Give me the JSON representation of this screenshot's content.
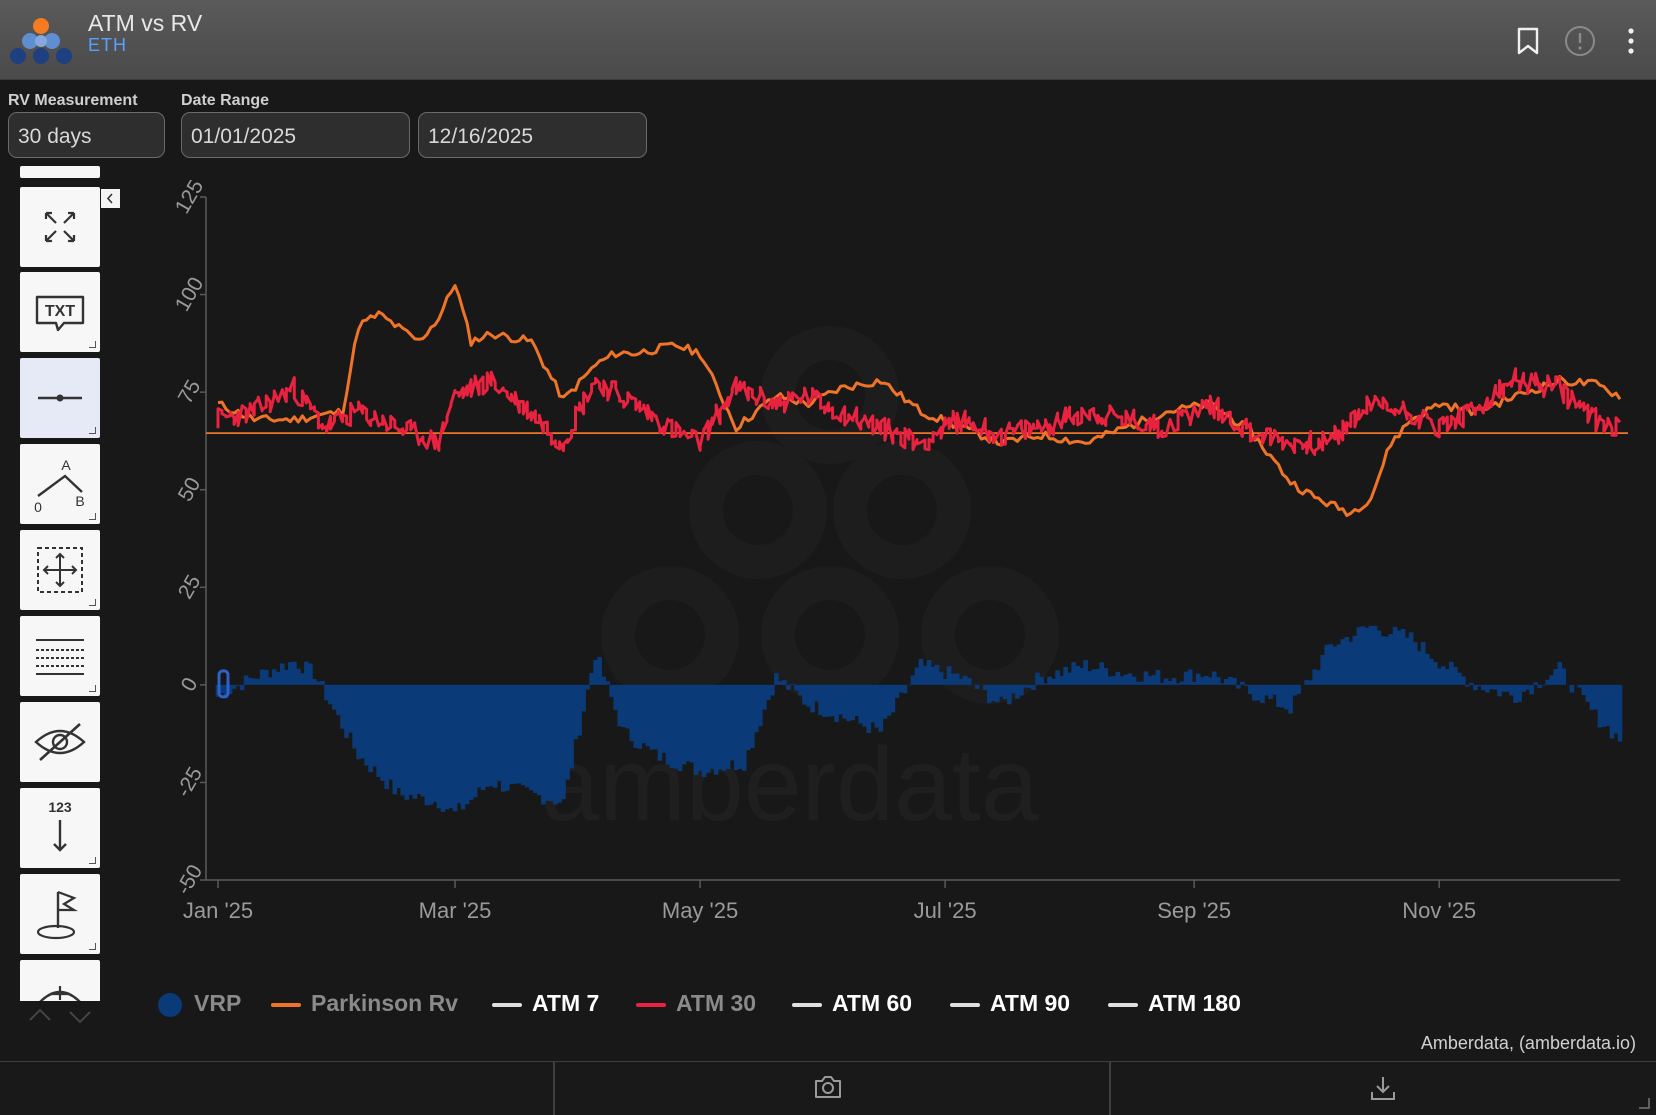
{
  "header": {
    "title": "ATM vs RV",
    "subtitle": "ETH",
    "icons": [
      "bookmark-icon",
      "info-icon",
      "more-vertical-icon"
    ]
  },
  "controls": {
    "rv_measurement_label": "RV Measurement",
    "rv_measurement_value": "30 days",
    "date_range_label": "Date Range",
    "date_start": "01/01/2025",
    "date_end": "12/16/2025"
  },
  "toolbar": {
    "tools": [
      "fullscreen-tool",
      "text-annotation-tool",
      "line-tool",
      "angle-tool",
      "crosshair-select-tool",
      "grid-lines-tool",
      "hide-tool",
      "numbering-tool",
      "flag-marker-tool",
      "measure-tool"
    ],
    "txt_glyph": "TXT",
    "angle_labels": [
      "A",
      "0",
      "B"
    ],
    "numbering_glyph": "123"
  },
  "colors": {
    "vrp": "#0b3a78",
    "parkinson": "#f07428",
    "atm30": "#e8223f",
    "inactive": "#e0e0e0",
    "background": "#181818"
  },
  "chart_data": {
    "type": "line",
    "y_ticks": [
      "125",
      "100",
      "75",
      "50",
      "25",
      "0",
      "-25",
      "-50"
    ],
    "ylim": [
      -50,
      125
    ],
    "x_ticks": [
      "Jan '25",
      "Mar '25",
      "May '25",
      "Jul '25",
      "Sep '25",
      "Nov '25"
    ],
    "xlim": [
      "2025-01-01",
      "2025-12-16"
    ],
    "reference_line": 64.5,
    "grid": false,
    "legend_position": "bottom",
    "series": [
      {
        "name": "VRP",
        "type": "area",
        "x": [
          "2025-01-01",
          "2025-01-10",
          "2025-01-20",
          "2025-01-25",
          "2025-02-05",
          "2025-02-15",
          "2025-02-25",
          "2025-03-01",
          "2025-03-10",
          "2025-03-20",
          "2025-03-28",
          "2025-04-05",
          "2025-04-12",
          "2025-04-20",
          "2025-05-01",
          "2025-05-12",
          "2025-05-20",
          "2025-05-28",
          "2025-06-05",
          "2025-06-15",
          "2025-06-25",
          "2025-07-05",
          "2025-07-15",
          "2025-07-25",
          "2025-08-05",
          "2025-08-15",
          "2025-08-25",
          "2025-09-05",
          "2025-09-15",
          "2025-09-25",
          "2025-10-05",
          "2025-10-15",
          "2025-10-25",
          "2025-11-01",
          "2025-11-10",
          "2025-11-20",
          "2025-12-01",
          "2025-12-10",
          "2025-12-16"
        ],
        "values": [
          -3,
          2,
          6,
          3,
          -18,
          -28,
          -30,
          -33,
          -25,
          -28,
          -30,
          8,
          -12,
          -18,
          -22,
          -20,
          2,
          -5,
          -8,
          -12,
          5,
          2,
          -5,
          2,
          5,
          3,
          2,
          3,
          -2,
          -6,
          10,
          15,
          12,
          6,
          0,
          -3,
          4,
          -8,
          -14
        ]
      },
      {
        "name": "Parkinson Rv",
        "type": "line",
        "x": [
          "2025-01-01",
          "2025-01-10",
          "2025-01-20",
          "2025-02-01",
          "2025-02-05",
          "2025-02-10",
          "2025-02-20",
          "2025-02-25",
          "2025-03-01",
          "2025-03-05",
          "2025-03-10",
          "2025-03-20",
          "2025-03-28",
          "2025-04-05",
          "2025-04-10",
          "2025-04-15",
          "2025-04-25",
          "2025-05-01",
          "2025-05-10",
          "2025-05-20",
          "2025-05-28",
          "2025-06-05",
          "2025-06-15",
          "2025-06-25",
          "2025-07-05",
          "2025-07-15",
          "2025-07-25",
          "2025-08-05",
          "2025-08-15",
          "2025-08-25",
          "2025-09-05",
          "2025-09-15",
          "2025-09-25",
          "2025-10-01",
          "2025-10-10",
          "2025-10-15",
          "2025-10-20",
          "2025-10-25",
          "2025-11-01",
          "2025-11-10",
          "2025-11-20",
          "2025-12-01",
          "2025-12-10",
          "2025-12-16"
        ],
        "values": [
          72,
          68,
          68,
          70,
          92,
          95,
          88,
          94,
          103,
          88,
          90,
          88,
          73,
          82,
          85,
          85,
          87,
          85,
          66,
          74,
          72,
          76,
          78,
          70,
          66,
          62,
          64,
          62,
          66,
          70,
          72,
          65,
          52,
          48,
          44,
          48,
          62,
          68,
          72,
          70,
          74,
          78,
          77,
          74
        ]
      },
      {
        "name": "ATM 7",
        "visible": false
      },
      {
        "name": "ATM 30",
        "type": "line",
        "x": [
          "2025-01-01",
          "2025-01-10",
          "2025-01-20",
          "2025-01-28",
          "2025-02-05",
          "2025-02-15",
          "2025-02-25",
          "2025-03-01",
          "2025-03-10",
          "2025-03-20",
          "2025-03-28",
          "2025-04-05",
          "2025-04-15",
          "2025-04-25",
          "2025-05-01",
          "2025-05-10",
          "2025-05-20",
          "2025-05-28",
          "2025-06-05",
          "2025-06-15",
          "2025-06-25",
          "2025-07-05",
          "2025-07-15",
          "2025-07-25",
          "2025-08-05",
          "2025-08-15",
          "2025-08-25",
          "2025-09-05",
          "2025-09-15",
          "2025-09-25",
          "2025-10-05",
          "2025-10-15",
          "2025-10-25",
          "2025-11-01",
          "2025-11-10",
          "2025-11-20",
          "2025-12-01",
          "2025-12-10",
          "2025-12-16"
        ],
        "values": [
          68,
          70,
          76,
          66,
          70,
          66,
          62,
          74,
          78,
          70,
          62,
          78,
          72,
          65,
          62,
          76,
          72,
          74,
          70,
          66,
          62,
          68,
          64,
          66,
          70,
          68,
          66,
          72,
          65,
          62,
          62,
          72,
          70,
          66,
          70,
          78,
          76,
          68,
          66
        ]
      },
      {
        "name": "ATM 60",
        "visible": false
      },
      {
        "name": "ATM 90",
        "visible": false
      },
      {
        "name": "ATM 180",
        "visible": false
      }
    ],
    "watermark": "amberdata"
  },
  "legend": [
    {
      "label": "VRP",
      "style": "dot",
      "color": "#0b3a78",
      "active": true
    },
    {
      "label": "Parkinson Rv",
      "style": "line",
      "color": "#f07428",
      "active": true
    },
    {
      "label": "ATM 7",
      "style": "line",
      "color": "#e0e0e0",
      "active": false
    },
    {
      "label": "ATM 30",
      "style": "line",
      "color": "#e8223f",
      "active": true
    },
    {
      "label": "ATM 60",
      "style": "line",
      "color": "#e0e0e0",
      "active": false
    },
    {
      "label": "ATM 90",
      "style": "line",
      "color": "#e0e0e0",
      "active": false
    },
    {
      "label": "ATM 180",
      "style": "line",
      "color": "#e0e0e0",
      "active": false
    }
  ],
  "footer": {
    "credit": "Amberdata, (amberdata.io)",
    "buttons": [
      "camera-icon",
      "download-icon"
    ]
  }
}
